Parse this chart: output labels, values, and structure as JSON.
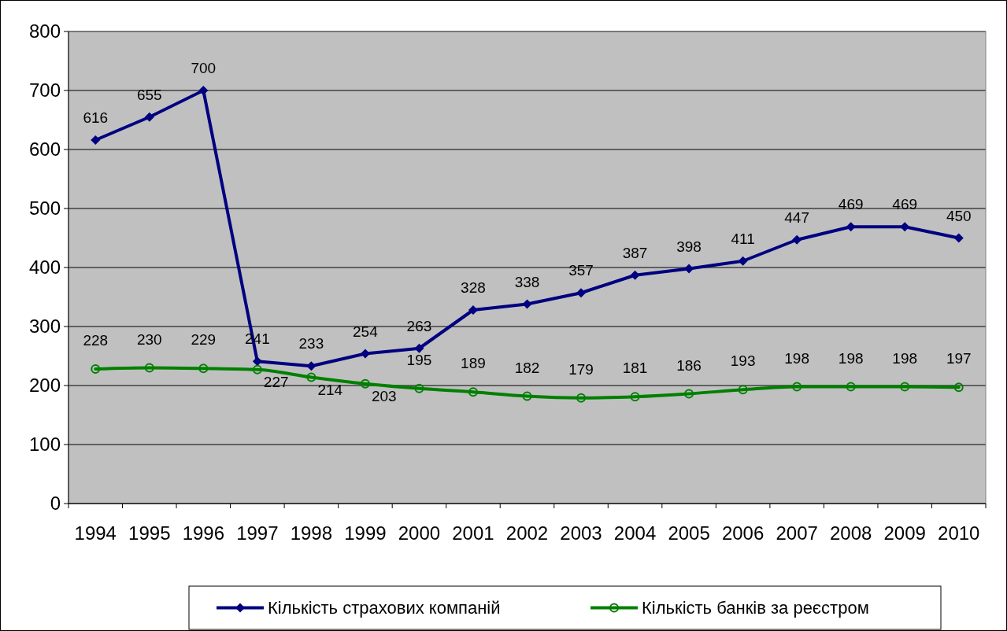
{
  "chart_data": {
    "type": "line",
    "categories": [
      "1994",
      "1995",
      "1996",
      "1997",
      "1998",
      "1999",
      "2000",
      "2001",
      "2002",
      "2003",
      "2004",
      "2005",
      "2006",
      "2007",
      "2008",
      "2009",
      "2010"
    ],
    "series": [
      {
        "name": "Кількість страхових компаній",
        "color": "#000080",
        "marker": "diamond",
        "values": [
          616,
          655,
          700,
          241,
          233,
          254,
          263,
          328,
          338,
          357,
          387,
          398,
          411,
          447,
          469,
          469,
          450
        ]
      },
      {
        "name": "Кількість банків за реєстром",
        "color": "#008000",
        "marker": "circle",
        "values": [
          228,
          230,
          229,
          227,
          214,
          203,
          195,
          189,
          182,
          179,
          181,
          186,
          193,
          198,
          198,
          198,
          197
        ]
      }
    ],
    "ylim": [
      0,
      800
    ],
    "yticks": [
      0,
      100,
      200,
      300,
      400,
      500,
      600,
      700,
      800
    ],
    "grid": "y",
    "legend": "bottom",
    "data_labels": true
  }
}
